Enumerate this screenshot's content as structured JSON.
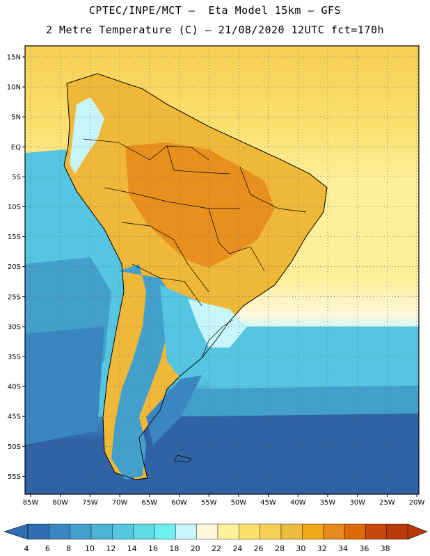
{
  "header": {
    "line1": "CPTEC/INPE/MCT –  Eta Model 15km – GFS",
    "line2": "2 Metre Temperature (C) – 21/08/2020 12UTC fct=170h"
  },
  "axes": {
    "lat_labels": [
      "15N",
      "10N",
      "5N",
      "EQ",
      "5S",
      "10S",
      "15S",
      "20S",
      "25S",
      "30S",
      "35S",
      "40S",
      "45S",
      "50S",
      "55S"
    ],
    "lon_labels": [
      "85W",
      "80W",
      "75W",
      "70W",
      "65W",
      "60W",
      "55W",
      "50W",
      "45W",
      "40W",
      "35W",
      "30W",
      "25W",
      "20W"
    ]
  },
  "legend": {
    "values": [
      "4",
      "6",
      "8",
      "10",
      "12",
      "14",
      "16",
      "18",
      "20",
      "22",
      "24",
      "26",
      "28",
      "30",
      "32",
      "34",
      "36",
      "38"
    ],
    "colors": [
      "#2f6db0",
      "#3a86c0",
      "#43a0cc",
      "#4bb3d6",
      "#56c7e0",
      "#5fdbe8",
      "#6cf0f0",
      "#c8f5fa",
      "#fff7dc",
      "#fdf09a",
      "#fbe06e",
      "#f6cf55",
      "#eebc3f",
      "#f0a818",
      "#e68a1e",
      "#dd6a0a",
      "#c8480a",
      "#b73a08"
    ],
    "low_color": "#2f6db0",
    "high_color": "#b73a08"
  },
  "colors": {
    "ocean_deep": "#2f63a6",
    "ocean_mid": "#3f8fc6",
    "ocean_light": "#54c6e2",
    "ocean_pale": "#c8f5fa",
    "ocean_warm": "#fbe06e",
    "land_hot": "#e8901e",
    "land_warm": "#f0b838",
    "coast": "#000000",
    "grid": "#6a6a6a"
  }
}
